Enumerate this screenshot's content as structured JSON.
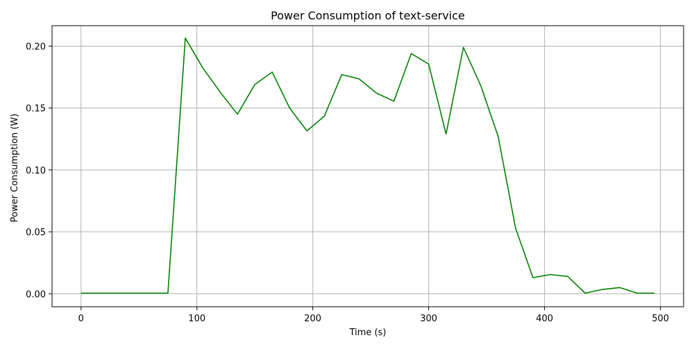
{
  "chart_data": {
    "type": "line",
    "title": "Power Consumption of text-service",
    "xlabel": "Time (s)",
    "ylabel": "Power Consumption (W)",
    "xlim": [
      -25,
      520
    ],
    "ylim": [
      -0.0105,
      0.2165
    ],
    "grid": true,
    "x_ticks": [
      0,
      100,
      200,
      300,
      400,
      500
    ],
    "y_ticks": [
      0.0,
      0.05,
      0.1,
      0.15,
      0.2
    ],
    "x_tick_labels": [
      "0",
      "100",
      "200",
      "300",
      "400",
      "500"
    ],
    "y_tick_labels": [
      "0.00",
      "0.05",
      "0.10",
      "0.15",
      "0.20"
    ],
    "series": [
      {
        "color": "#008000",
        "x": [
          0,
          15,
          30,
          45,
          60,
          75,
          90,
          105,
          120,
          135,
          150,
          165,
          180,
          195,
          210,
          225,
          240,
          255,
          270,
          285,
          300,
          315,
          330,
          345,
          360,
          375,
          390,
          405,
          420,
          435,
          450,
          465,
          480,
          495
        ],
        "y": [
          0.0005,
          0.0005,
          0.0005,
          0.0005,
          0.0005,
          0.0005,
          0.2065,
          0.1825,
          0.163,
          0.145,
          0.169,
          0.179,
          0.15,
          0.1315,
          0.1435,
          0.177,
          0.1735,
          0.162,
          0.1555,
          0.194,
          0.1855,
          0.129,
          0.199,
          0.168,
          0.127,
          0.053,
          0.013,
          0.0155,
          0.014,
          0.0005,
          0.0035,
          0.005,
          0.0005,
          0.0005
        ]
      }
    ]
  }
}
